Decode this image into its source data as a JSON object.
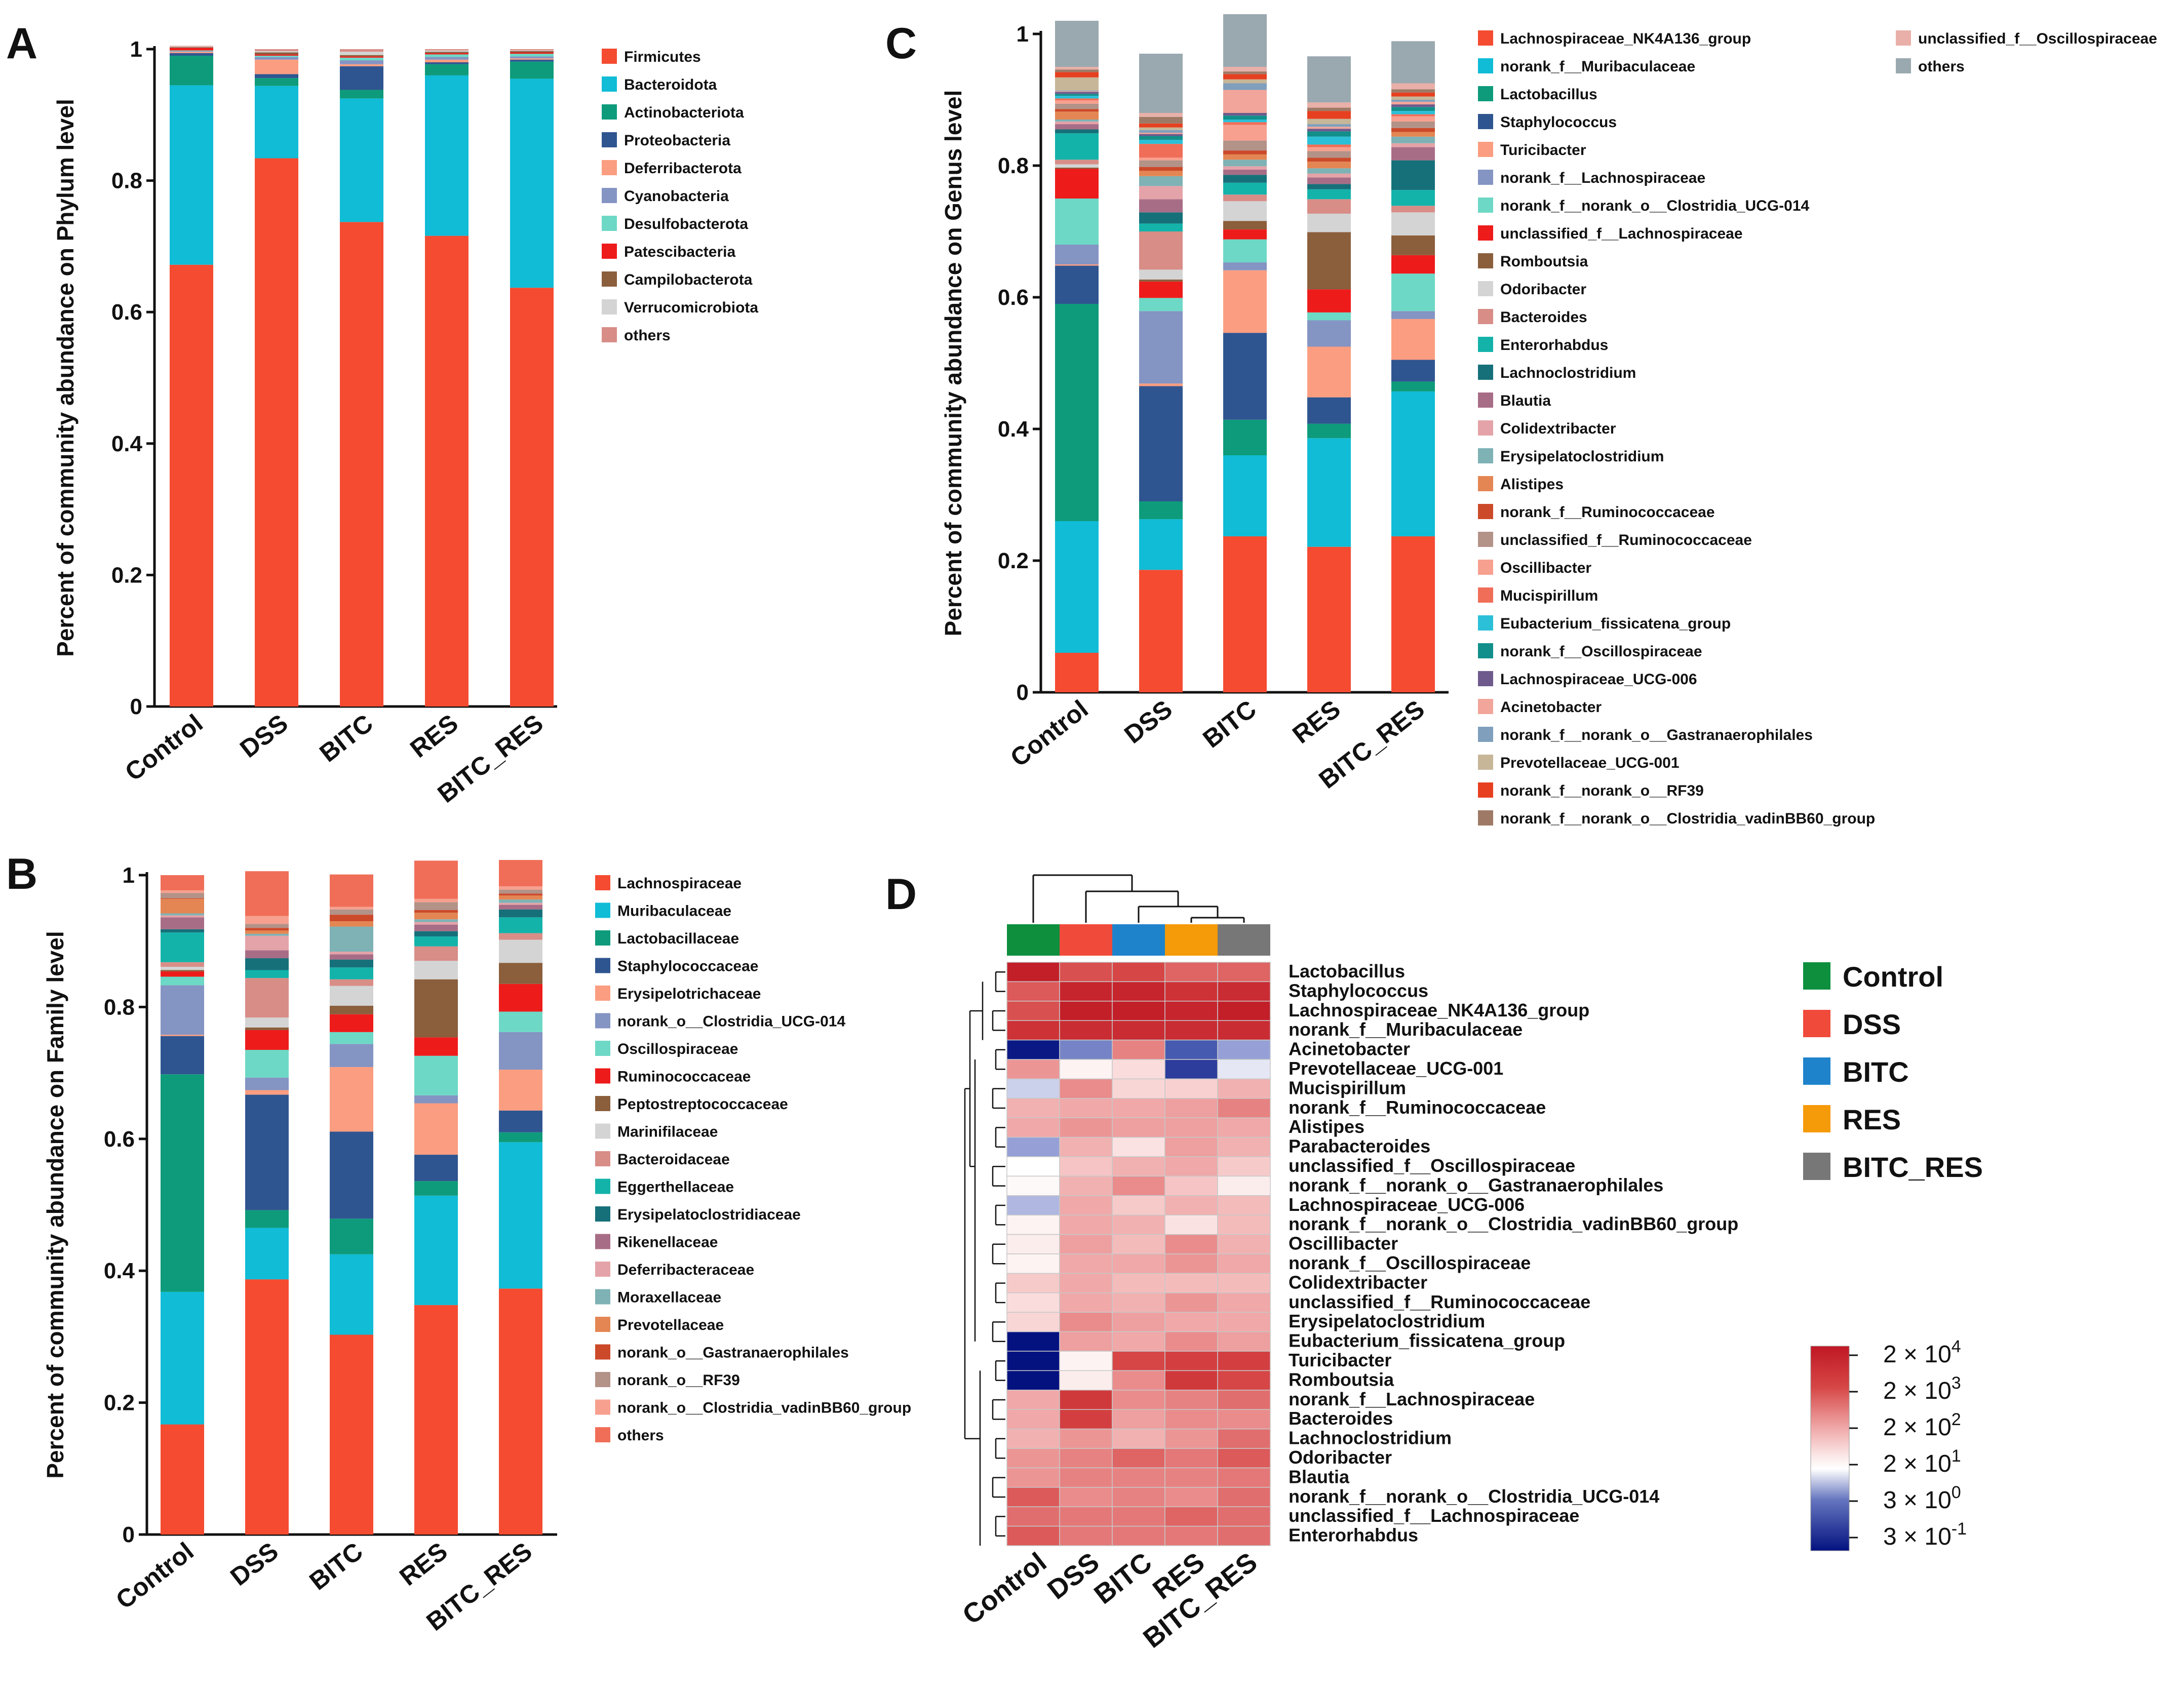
{
  "chart_data": [
    {
      "panel": "A",
      "type": "stacked-bar",
      "ylabel": "Percent of community abundance on Phylum level",
      "ylim": [
        0,
        1
      ],
      "yticks": [
        "0",
        "0.2",
        "0.4",
        "0.6",
        "0.8",
        "1"
      ],
      "categories": [
        "Control",
        "DSS",
        "BITC",
        "RES",
        "BITC_RES"
      ],
      "series": [
        {
          "name": "Firmicutes",
          "color": "#f44b31",
          "values": [
            0.672,
            0.834,
            0.737,
            0.716,
            0.637
          ]
        },
        {
          "name": "Bacteroidota",
          "color": "#10bcd6",
          "values": [
            0.273,
            0.11,
            0.188,
            0.244,
            0.318
          ]
        },
        {
          "name": "Actinobacteriota",
          "color": "#0e9b7b",
          "values": [
            0.045,
            0.012,
            0.013,
            0.017,
            0.026
          ]
        },
        {
          "name": "Proteobacteria",
          "color": "#2f5590",
          "values": [
            0.004,
            0.006,
            0.036,
            0.003,
            0.003
          ]
        },
        {
          "name": "Deferribacterota",
          "color": "#fb9d80",
          "values": [
            0.002,
            0.022,
            0.003,
            0.004,
            0.002
          ]
        },
        {
          "name": "Cyanobacteria",
          "color": "#8494c3",
          "values": [
            0.001,
            0.004,
            0.006,
            0.004,
            0.003
          ]
        },
        {
          "name": "Desulfobacterota",
          "color": "#6dd8c5",
          "values": [
            0.001,
            0.002,
            0.004,
            0.004,
            0.004
          ]
        },
        {
          "name": "Patescibacteria",
          "color": "#ee1b1b",
          "values": [
            0.004,
            0.002,
            0.002,
            0.002,
            0.002
          ]
        },
        {
          "name": "Campilobacterota",
          "color": "#8b5e3c",
          "values": [
            0.001,
            0.003,
            0.002,
            0.002,
            0.002
          ]
        },
        {
          "name": "Verrucomicrobiota",
          "color": "#d4d4d4",
          "values": [
            0.001,
            0.002,
            0.005,
            0.002,
            0.001
          ]
        },
        {
          "name": "others",
          "color": "#d88d87",
          "values": [
            0.001,
            0.003,
            0.004,
            0.002,
            0.002
          ]
        }
      ]
    },
    {
      "panel": "B",
      "type": "stacked-bar",
      "ylabel": "Percent of community abundance on Family level",
      "ylim": [
        0,
        1
      ],
      "yticks": [
        "0",
        "0.2",
        "0.4",
        "0.6",
        "0.8",
        "1"
      ],
      "categories": [
        "Control",
        "DSS",
        "BITC",
        "RES",
        "BITC_RES"
      ],
      "series": [
        {
          "name": "Lachnospiraceae",
          "color": "#f44b31",
          "values": [
            0.167,
            0.387,
            0.303,
            0.348,
            0.373
          ]
        },
        {
          "name": "Muribaculaceae",
          "color": "#10bcd6",
          "values": [
            0.201,
            0.078,
            0.122,
            0.166,
            0.222
          ]
        },
        {
          "name": "Lactobacillaceae",
          "color": "#0e9b7b",
          "values": [
            0.33,
            0.027,
            0.054,
            0.022,
            0.015
          ]
        },
        {
          "name": "Staphylococcaceae",
          "color": "#2f5590",
          "values": [
            0.058,
            0.175,
            0.132,
            0.04,
            0.033
          ]
        },
        {
          "name": "Erysipelotrichaceae",
          "color": "#fb9d80",
          "values": [
            0.002,
            0.007,
            0.098,
            0.078,
            0.062
          ]
        },
        {
          "name": "norank_o__Clostridia_UCG-014",
          "color": "#8494c3",
          "values": [
            0.075,
            0.019,
            0.035,
            0.012,
            0.057
          ]
        },
        {
          "name": "Oscillospiraceae",
          "color": "#6dd8c5",
          "values": [
            0.013,
            0.042,
            0.018,
            0.06,
            0.031
          ]
        },
        {
          "name": "Ruminococcaceae",
          "color": "#ee1b1b",
          "values": [
            0.008,
            0.03,
            0.027,
            0.028,
            0.042
          ]
        },
        {
          "name": "Peptostreptococcaceae",
          "color": "#8b5e3c",
          "values": [
            0.002,
            0.004,
            0.013,
            0.088,
            0.032
          ]
        },
        {
          "name": "Marinifilaceae",
          "color": "#d4d4d4",
          "values": [
            0.005,
            0.015,
            0.03,
            0.028,
            0.035
          ]
        },
        {
          "name": "Bacteroidaceae",
          "color": "#d88d87",
          "values": [
            0.007,
            0.06,
            0.01,
            0.022,
            0.01
          ]
        },
        {
          "name": "Eggerthellaceae",
          "color": "#13b3aa",
          "values": [
            0.045,
            0.012,
            0.018,
            0.015,
            0.024
          ]
        },
        {
          "name": "Erysipelatoclostridiaceae",
          "color": "#16707a",
          "values": [
            0.005,
            0.018,
            0.012,
            0.008,
            0.012
          ]
        },
        {
          "name": "Rikenellaceae",
          "color": "#a86d86",
          "values": [
            0.018,
            0.012,
            0.008,
            0.01,
            0.007
          ]
        },
        {
          "name": "Deferribacteraceae",
          "color": "#e4a3a8",
          "values": [
            0.003,
            0.022,
            0.004,
            0.004,
            0.003
          ]
        },
        {
          "name": "Moraxellaceae",
          "color": "#7eb2b5",
          "values": [
            0.003,
            0.003,
            0.038,
            0.004,
            0.005
          ]
        },
        {
          "name": "Prevotellaceae",
          "color": "#e48653",
          "values": [
            0.022,
            0.005,
            0.008,
            0.01,
            0.006
          ]
        },
        {
          "name": "norank_o__Gastranaerophilales",
          "color": "#cc4a2a",
          "values": [
            0.001,
            0.004,
            0.01,
            0.004,
            0.003
          ]
        },
        {
          "name": "norank_o__RF39",
          "color": "#b39288",
          "values": [
            0.008,
            0.006,
            0.008,
            0.012,
            0.006
          ]
        },
        {
          "name": "norank_o__Clostridia_vadinBB60_group",
          "color": "#f7a08f",
          "values": [
            0.004,
            0.012,
            0.004,
            0.005,
            0.005
          ]
        },
        {
          "name": "others",
          "color": "#f06e58",
          "values": [
            0.023,
            0.068,
            0.049,
            0.058,
            0.04
          ]
        }
      ]
    },
    {
      "panel": "C",
      "type": "stacked-bar",
      "ylabel": "Percent of community abundance on Genus level",
      "ylim": [
        0,
        1
      ],
      "yticks": [
        "0",
        "0.2",
        "0.4",
        "0.6",
        "0.8",
        "1"
      ],
      "categories": [
        "Control",
        "DSS",
        "BITC",
        "RES",
        "BITC_RES"
      ],
      "series": [
        {
          "name": "Lachnospiraceae_NK4A136_group",
          "color": "#f44b31",
          "values": [
            0.06,
            0.186,
            0.237,
            0.221,
            0.237
          ]
        },
        {
          "name": "norank_f__Muribaculaceae",
          "color": "#10bcd6",
          "values": [
            0.2,
            0.077,
            0.123,
            0.165,
            0.22
          ]
        },
        {
          "name": "Lactobacillus",
          "color": "#0e9b7b",
          "values": [
            0.33,
            0.027,
            0.054,
            0.022,
            0.015
          ]
        },
        {
          "name": "Staphylococcus",
          "color": "#2f5590",
          "values": [
            0.058,
            0.175,
            0.132,
            0.04,
            0.033
          ]
        },
        {
          "name": "Turicibacter",
          "color": "#fb9d80",
          "values": [
            0.002,
            0.004,
            0.095,
            0.077,
            0.062
          ]
        },
        {
          "name": "norank_f__Lachnospiraceae",
          "color": "#8494c3",
          "values": [
            0.03,
            0.11,
            0.012,
            0.04,
            0.012
          ]
        },
        {
          "name": "norank_f__norank_o__Clostridia_UCG-014",
          "color": "#6dd8c5",
          "values": [
            0.07,
            0.02,
            0.035,
            0.012,
            0.057
          ]
        },
        {
          "name": "unclassified_f__Lachnospiraceae",
          "color": "#ee1b1b",
          "values": [
            0.045,
            0.025,
            0.015,
            0.035,
            0.028
          ]
        },
        {
          "name": "Romboutsia",
          "color": "#8b5e3c",
          "values": [
            0.002,
            0.003,
            0.013,
            0.087,
            0.03
          ]
        },
        {
          "name": "Odoribacter",
          "color": "#d4d4d4",
          "values": [
            0.005,
            0.015,
            0.03,
            0.028,
            0.035
          ]
        },
        {
          "name": "Bacteroides",
          "color": "#d88d87",
          "values": [
            0.007,
            0.058,
            0.01,
            0.022,
            0.01
          ]
        },
        {
          "name": "Enterorhabdus",
          "color": "#13b3aa",
          "values": [
            0.04,
            0.012,
            0.018,
            0.015,
            0.024
          ]
        },
        {
          "name": "Lachnoclostridium",
          "color": "#16707a",
          "values": [
            0.006,
            0.017,
            0.012,
            0.008,
            0.045
          ]
        },
        {
          "name": "Blautia",
          "color": "#a86d86",
          "values": [
            0.008,
            0.02,
            0.008,
            0.01,
            0.02
          ]
        },
        {
          "name": "Colidextribacter",
          "color": "#e4a3a8",
          "values": [
            0.004,
            0.02,
            0.005,
            0.006,
            0.006
          ]
        },
        {
          "name": "Erysipelatoclostridium",
          "color": "#7eb2b5",
          "values": [
            0.003,
            0.015,
            0.01,
            0.008,
            0.01
          ]
        },
        {
          "name": "Alistipes",
          "color": "#e48653",
          "values": [
            0.012,
            0.008,
            0.008,
            0.01,
            0.007
          ]
        },
        {
          "name": "norank_f__Ruminococcaceae",
          "color": "#cc4a2a",
          "values": [
            0.004,
            0.006,
            0.006,
            0.006,
            0.006
          ]
        },
        {
          "name": "unclassified_f__Ruminococcaceae",
          "color": "#b39288",
          "values": [
            0.008,
            0.01,
            0.015,
            0.01,
            0.01
          ]
        },
        {
          "name": "Oscillibacter",
          "color": "#f7a08f",
          "values": [
            0.005,
            0.004,
            0.024,
            0.006,
            0.008
          ]
        },
        {
          "name": "Mucispirillum",
          "color": "#f06e58",
          "values": [
            0.003,
            0.021,
            0.004,
            0.004,
            0.003
          ]
        },
        {
          "name": "Eubacterium_fissicatena_group",
          "color": "#2bc0d8",
          "values": [
            0.004,
            0.006,
            0.004,
            0.012,
            0.005
          ]
        },
        {
          "name": "norank_f__Oscillospiraceae",
          "color": "#128f8a",
          "values": [
            0.003,
            0.006,
            0.006,
            0.008,
            0.006
          ]
        },
        {
          "name": "Lachnospiraceae_UCG-006",
          "color": "#6e5a8c",
          "values": [
            0.003,
            0.003,
            0.004,
            0.004,
            0.004
          ]
        },
        {
          "name": "Acinetobacter",
          "color": "#f2a59a",
          "values": [
            0.001,
            0.002,
            0.035,
            0.003,
            0.004
          ]
        },
        {
          "name": "norank_f__norank_o__Gastranaerophilales",
          "color": "#7f9fbd",
          "values": [
            0.001,
            0.004,
            0.01,
            0.004,
            0.003
          ]
        },
        {
          "name": "Prevotellaceae_UCG-001",
          "color": "#c7b698",
          "values": [
            0.02,
            0.004,
            0.006,
            0.008,
            0.005
          ]
        },
        {
          "name": "norank_f__norank_o__RF39",
          "color": "#e64020",
          "values": [
            0.008,
            0.006,
            0.008,
            0.012,
            0.006
          ]
        },
        {
          "name": "norank_f__norank_o__Clostridia_vadinBB60_group",
          "color": "#9e7a66",
          "values": [
            0.004,
            0.01,
            0.004,
            0.005,
            0.005
          ]
        },
        {
          "name": "unclassified_f__Oscillospiraceae",
          "color": "#e8b0a8",
          "values": [
            0.004,
            0.006,
            0.007,
            0.008,
            0.009
          ]
        },
        {
          "name": "others",
          "color": "#9aa9b0",
          "values": [
            0.07,
            0.09,
            0.08,
            0.07,
            0.064
          ]
        }
      ]
    },
    {
      "panel": "D",
      "type": "heatmap",
      "columns": [
        "Control",
        "DSS",
        "BITC",
        "RES",
        "BITC_RES"
      ],
      "column_colors": [
        "#0d8f3e",
        "#f04a3b",
        "#1f83cc",
        "#f59a08",
        "#777777"
      ],
      "rows": [
        "Lactobacillus",
        "Staphylococcus",
        "Lachnospiraceae_NK4A136_group",
        "norank_f__Muribaculaceae",
        "Acinetobacter",
        "Prevotellaceae_UCG-001",
        "Mucispirillum",
        "norank_f__Ruminococcaceae",
        "Alistipes",
        "Parabacteroides",
        "unclassified_f__Oscillospiraceae",
        "norank_f__norank_o__Gastranaerophilales",
        "Lachnospiraceae_UCG-006",
        "norank_f__norank_o__Clostridia_vadinBB60_group",
        "Oscillibacter",
        "norank_f__Oscillospiraceae",
        "Colidextribacter",
        "unclassified_f__Ruminococcaceae",
        "Erysipelatoclostridium",
        "Eubacterium_fissicatena_group",
        "Turicibacter",
        "Romboutsia",
        "norank_f__Lachnospiraceae",
        "Bacteroides",
        "Lachnoclostridium",
        "Odoribacter",
        "Blautia",
        "norank_f__norank_o__Clostridia_UCG-014",
        "unclassified_f__Lachnospiraceae",
        "Enterorhabdus"
      ],
      "values_log10": [
        [
          4.2,
          3.5,
          3.6,
          3.3,
          3.3
        ],
        [
          3.4,
          4.1,
          4.1,
          3.9,
          4.0
        ],
        [
          3.5,
          4.2,
          4.2,
          4.1,
          4.2
        ],
        [
          3.9,
          4.0,
          4.0,
          4.0,
          4.0
        ],
        [
          -0.5,
          0.7,
          3.0,
          0.4,
          0.9
        ],
        [
          2.8,
          1.5,
          1.9,
          0.0,
          1.2
        ],
        [
          1.1,
          2.9,
          2.0,
          2.1,
          2.5
        ],
        [
          2.5,
          2.6,
          2.6,
          2.7,
          3.0
        ],
        [
          2.6,
          2.8,
          2.7,
          2.7,
          2.6
        ],
        [
          0.9,
          2.5,
          1.8,
          2.7,
          2.5
        ],
        [
          1.3,
          2.3,
          2.5,
          2.6,
          2.2
        ],
        [
          1.4,
          2.5,
          2.9,
          2.3,
          1.6
        ],
        [
          1.0,
          2.6,
          2.2,
          2.5,
          2.4
        ],
        [
          1.5,
          2.6,
          2.5,
          1.8,
          2.4
        ],
        [
          1.6,
          2.7,
          2.4,
          2.9,
          2.5
        ],
        [
          1.5,
          2.6,
          2.6,
          2.8,
          2.6
        ],
        [
          2.2,
          2.6,
          2.4,
          2.4,
          2.4
        ],
        [
          1.9,
          2.6,
          2.5,
          2.8,
          2.6
        ],
        [
          2.0,
          2.9,
          2.7,
          2.6,
          2.6
        ],
        [
          -0.6,
          2.7,
          2.6,
          2.9,
          2.7
        ],
        [
          -0.6,
          1.5,
          3.6,
          3.7,
          3.7
        ],
        [
          -0.6,
          1.6,
          2.9,
          3.8,
          3.6
        ],
        [
          2.6,
          3.8,
          2.9,
          3.0,
          3.2
        ],
        [
          2.6,
          3.7,
          2.7,
          2.9,
          2.9
        ],
        [
          2.5,
          2.8,
          2.5,
          2.8,
          3.2
        ],
        [
          2.8,
          3.0,
          3.3,
          3.1,
          3.4
        ],
        [
          2.8,
          3.0,
          3.0,
          3.0,
          3.1
        ],
        [
          3.4,
          2.9,
          3.0,
          2.9,
          3.2
        ],
        [
          3.2,
          3.1,
          3.1,
          3.3,
          3.2
        ],
        [
          3.4,
          3.1,
          3.1,
          3.1,
          3.2
        ]
      ],
      "colorbar_labels": [
        "2 × 10^4",
        "2 × 10^3",
        "2 × 10^2",
        "2 × 10^1",
        "3 × 10^0",
        "3 × 10^-1"
      ]
    }
  ],
  "panels": {
    "a": "A",
    "b": "B",
    "c": "C",
    "d": "D"
  },
  "colorbar": [
    {
      "mant": "2 × 10",
      "exp": "4"
    },
    {
      "mant": "2 × 10",
      "exp": "3"
    },
    {
      "mant": "2 × 10",
      "exp": "2"
    },
    {
      "mant": "2 × 10",
      "exp": "1"
    },
    {
      "mant": "3 × 10",
      "exp": "0"
    },
    {
      "mant": "3 × 10",
      "exp": "-1"
    }
  ]
}
